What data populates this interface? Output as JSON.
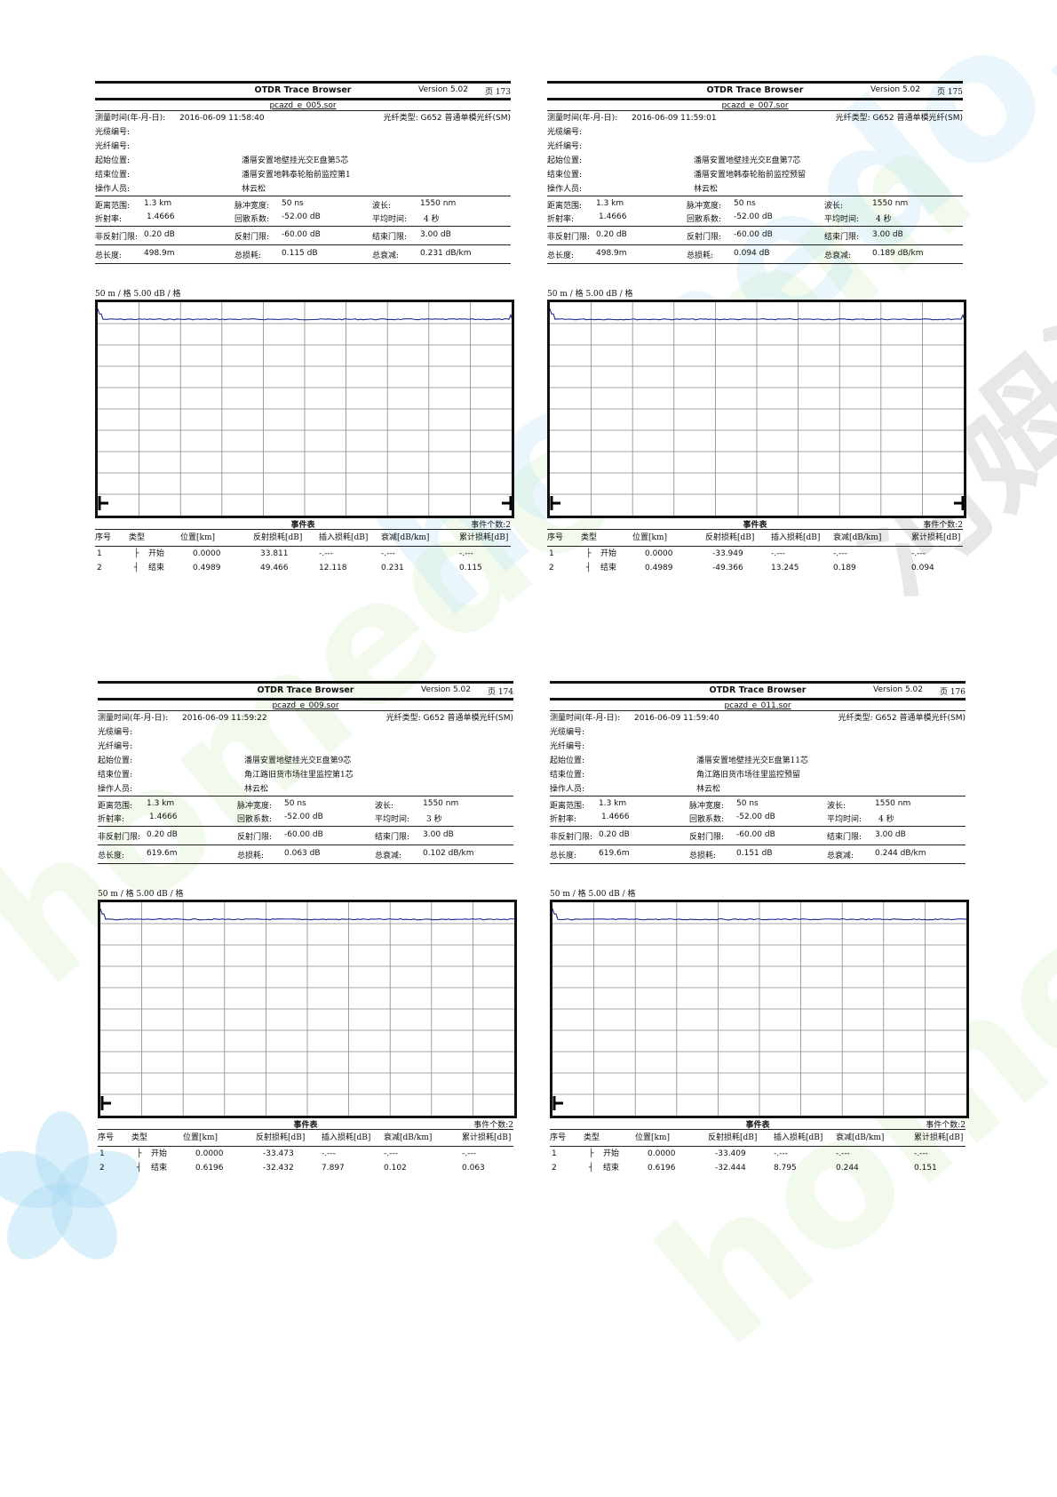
{
  "watermark": {
    "text_green": "homedo.com",
    "text_gray": "河姆渡"
  },
  "labels": {
    "measure_time": "测量时间(年-月-日):",
    "fiber_type": "光纤类型:",
    "cable_no": "光缆编号:",
    "fiber_no": "光纤编号:",
    "start_pos": "起始位置:",
    "end_pos": "结束位置:",
    "operator": "操作人员:",
    "range": "距离范围:",
    "pulse": "脉冲宽度:",
    "wavelength": "波长:",
    "ior": "折射率:",
    "backscatter": "回散系数:",
    "avg_time": "平均时间:",
    "nonrefl": "非反射门限:",
    "refl": "反射门限:",
    "end_thr": "结束门限:",
    "total_len": "总长度:",
    "total_loss": "总损耗:",
    "total_atten": "总衰减:",
    "scale": "50 m / 格    5.00 dB / 格",
    "event_table": "事件表",
    "cols": [
      "序号",
      "类型",
      "位置[km]",
      "反射损耗[dB]",
      "插入损耗[dB]",
      "衰减[dB/km]",
      "累计损耗[dB]"
    ]
  },
  "reports": [
    {
      "title": "OTDR Trace Browser",
      "version": "Version 5.02",
      "page": "页  173",
      "file": "pcazd_e_005.sor",
      "time": "2016-06-09  11:58:40",
      "fiber_type": "G652 普通单模光纤(SM)",
      "start": "潘厝安置地壁挂光交E盘第5芯",
      "end": "潘厝安置地韩泰轮胎前监控第1",
      "operator": "林云松",
      "range": "1.3 km",
      "pulse": "50 ns",
      "wavelength": "1550 nm",
      "ior": "1.4666",
      "backscatter": "-52.00 dB",
      "avg_time": "4 秒",
      "nonrefl": "0.20 dB",
      "refl": "-60.00 dB",
      "end_thr": "3.00 dB",
      "total_len": "498.9m",
      "total_loss": "0.115 dB",
      "total_atten": "0.231 dB/km",
      "event_count": "事件个数:2",
      "events": [
        [
          "1",
          "├",
          "开始",
          "0.0000",
          "33.811",
          "-.---",
          "-.---",
          "-.---"
        ],
        [
          "2",
          "┤",
          "结束",
          "0.4989",
          "49.466",
          "12.118",
          "0.231",
          "0.115"
        ]
      ],
      "trace": {
        "end_km": 0.4989,
        "launch_db": -1.5,
        "floor_db": -4.0,
        "end_peak_db": -3.0,
        "noise_top_db": -6.0
      }
    },
    {
      "title": "OTDR Trace Browser",
      "version": "Version 5.02",
      "page": "页  175",
      "file": "pcazd_e_007.sor",
      "time": "2016-06-09  11:59:01",
      "fiber_type": "G652 普通单模光纤(SM)",
      "start": "潘厝安置地壁挂光交E盘第7芯",
      "end": "潘厝安置地韩泰轮胎前监控预留",
      "operator": "林云松",
      "range": "1.3 km",
      "pulse": "50 ns",
      "wavelength": "1550 nm",
      "ior": "1.4666",
      "backscatter": "-52.00 dB",
      "avg_time": "4 秒",
      "nonrefl": "0.20 dB",
      "refl": "-60.00 dB",
      "end_thr": "3.00 dB",
      "total_len": "498.9m",
      "total_loss": "0.094 dB",
      "total_atten": "0.189 dB/km",
      "event_count": "事件个数:2",
      "events": [
        [
          "1",
          "├",
          "开始",
          "0.0000",
          "-33.949",
          "-.---",
          "-.---",
          "-.---"
        ],
        [
          "2",
          "┤",
          "结束",
          "0.4989",
          "-49.366",
          "13.245",
          "0.189",
          "0.094"
        ]
      ],
      "trace": {
        "end_km": 0.4989,
        "launch_db": -1.5,
        "floor_db": -4.0,
        "end_peak_db": -3.0,
        "noise_top_db": -6.0
      }
    },
    {
      "title": "OTDR Trace Browser",
      "version": "Version 5.02",
      "page": "页  174",
      "file": "pcazd_e_009.sor",
      "time": "2016-06-09  11:59:22",
      "fiber_type": "G652 普通单模光纤(SM)",
      "start": "潘厝安置地壁挂光交E盘第9芯",
      "end": "角江路旧货市场往里监控第1芯",
      "operator": "林云松",
      "range": "1.3 km",
      "pulse": "50 ns",
      "wavelength": "1550 nm",
      "ior": "1.4666",
      "backscatter": "-52.00 dB",
      "avg_time": "3 秒",
      "nonrefl": "0.20 dB",
      "refl": "-60.00 dB",
      "end_thr": "3.00 dB",
      "total_len": "619.6m",
      "total_loss": "0.063 dB",
      "total_atten": "0.102 dB/km",
      "event_count": "事件个数:2",
      "events": [
        [
          "1",
          "├",
          "开始",
          "0.0000",
          "-33.473",
          "-.---",
          "-.---",
          "-.---"
        ],
        [
          "2",
          "┤",
          "结束",
          "0.6196",
          "-32.432",
          "7.897",
          "0.102",
          "0.063"
        ]
      ],
      "trace": {
        "end_km": 0.6196,
        "launch_db": -1.5,
        "floor_db": -4.0,
        "end_peak_db": -1.5,
        "noise_top_db": -5.0
      }
    },
    {
      "title": "OTDR Trace Browser",
      "version": "Version 5.02",
      "page": "页  176",
      "file": "pcazd_e_011.sor",
      "time": "2016-06-09  11:59:40",
      "fiber_type": "G652 普通单模光纤(SM)",
      "start": "潘厝安置地壁挂光交E盘第11芯",
      "end": "角江路旧货市场往里监控预留",
      "operator": "林云松",
      "range": "1.3 km",
      "pulse": "50 ns",
      "wavelength": "1550 nm",
      "ior": "1.4666",
      "backscatter": "-52.00 dB",
      "avg_time": "4 秒",
      "nonrefl": "0.20 dB",
      "refl": "-60.00 dB",
      "end_thr": "3.00 dB",
      "total_len": "619.6m",
      "total_loss": "0.151 dB",
      "total_atten": "0.244 dB/km",
      "event_count": "事件个数:2",
      "events": [
        [
          "1",
          "├",
          "开始",
          "0.0000",
          "-33.409",
          "-.---",
          "-.---",
          "-.---"
        ],
        [
          "2",
          "┤",
          "结束",
          "0.6196",
          "-32.444",
          "8.795",
          "0.244",
          "0.151"
        ]
      ],
      "trace": {
        "end_km": 0.6196,
        "launch_db": -1.5,
        "floor_db": -4.0,
        "end_peak_db": -1.5,
        "noise_top_db": -5.0
      }
    }
  ]
}
